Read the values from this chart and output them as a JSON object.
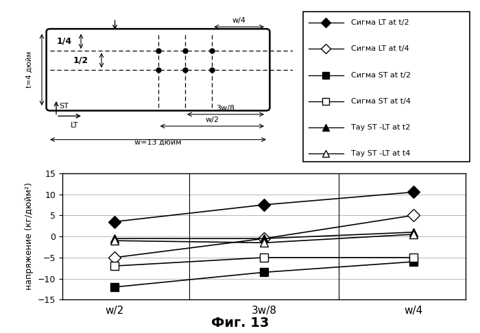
{
  "x_labels": [
    "w/2",
    "3w/8",
    "w/4"
  ],
  "x_positions": [
    0,
    1,
    2
  ],
  "series": [
    {
      "label": "Сигма LT at t/2",
      "values": [
        3.5,
        7.5,
        10.5
      ],
      "marker": "D",
      "fillstyle": "full",
      "markersize": 9
    },
    {
      "label": "Сигма LT at t/4",
      "values": [
        -5.0,
        -0.5,
        5.0
      ],
      "marker": "D",
      "fillstyle": "none",
      "markersize": 9
    },
    {
      "label": "Сигма ST at t/2",
      "values": [
        -12.0,
        -8.5,
        -6.0
      ],
      "marker": "s",
      "fillstyle": "full",
      "markersize": 9
    },
    {
      "label": "Сигма ST at t/4",
      "values": [
        -7.0,
        -5.0,
        -5.0
      ],
      "marker": "s",
      "fillstyle": "none",
      "markersize": 9
    },
    {
      "label": "Тау ST -LT at t2",
      "values": [
        -0.5,
        -0.5,
        1.0
      ],
      "marker": "^",
      "fillstyle": "full",
      "markersize": 9
    },
    {
      "label": "Тау ST -LT at t4",
      "values": [
        -1.0,
        -1.5,
        0.5
      ],
      "marker": "^",
      "fillstyle": "none",
      "markersize": 9
    }
  ],
  "ylabel": "напряжение (кг/дюйм²)",
  "ylim": [
    -15,
    15
  ],
  "yticks": [
    -15,
    -10,
    -5,
    0,
    5,
    10,
    15
  ],
  "fig_caption": "Фиг. 13"
}
